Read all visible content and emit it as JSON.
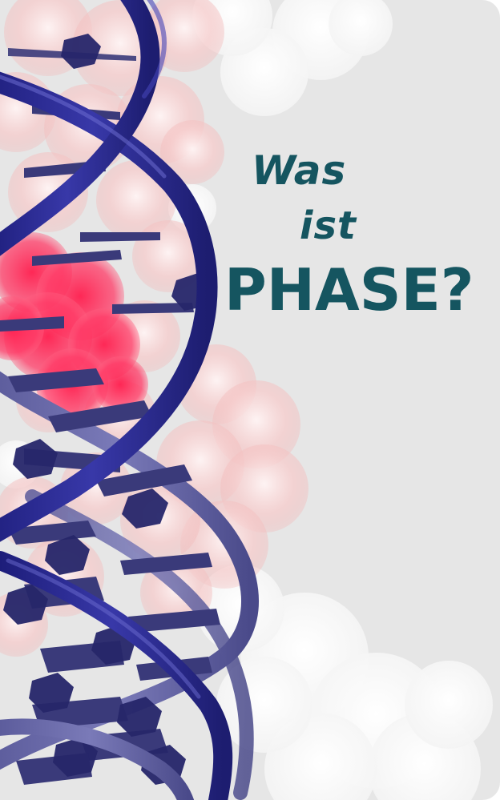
{
  "headline": {
    "line1": "Was",
    "line2": "ist",
    "line3": "PHASE?"
  },
  "illustration": {
    "subject": "dna-double-helix",
    "colors": {
      "background": "#e6e6e6",
      "helix": "#2c2c8c",
      "helix_light": "#6a6aa8",
      "base": "#3a3a78",
      "cloud": "#f6c8c8",
      "cloud_highlight": "#ff2a55",
      "headline": "#155560"
    }
  }
}
